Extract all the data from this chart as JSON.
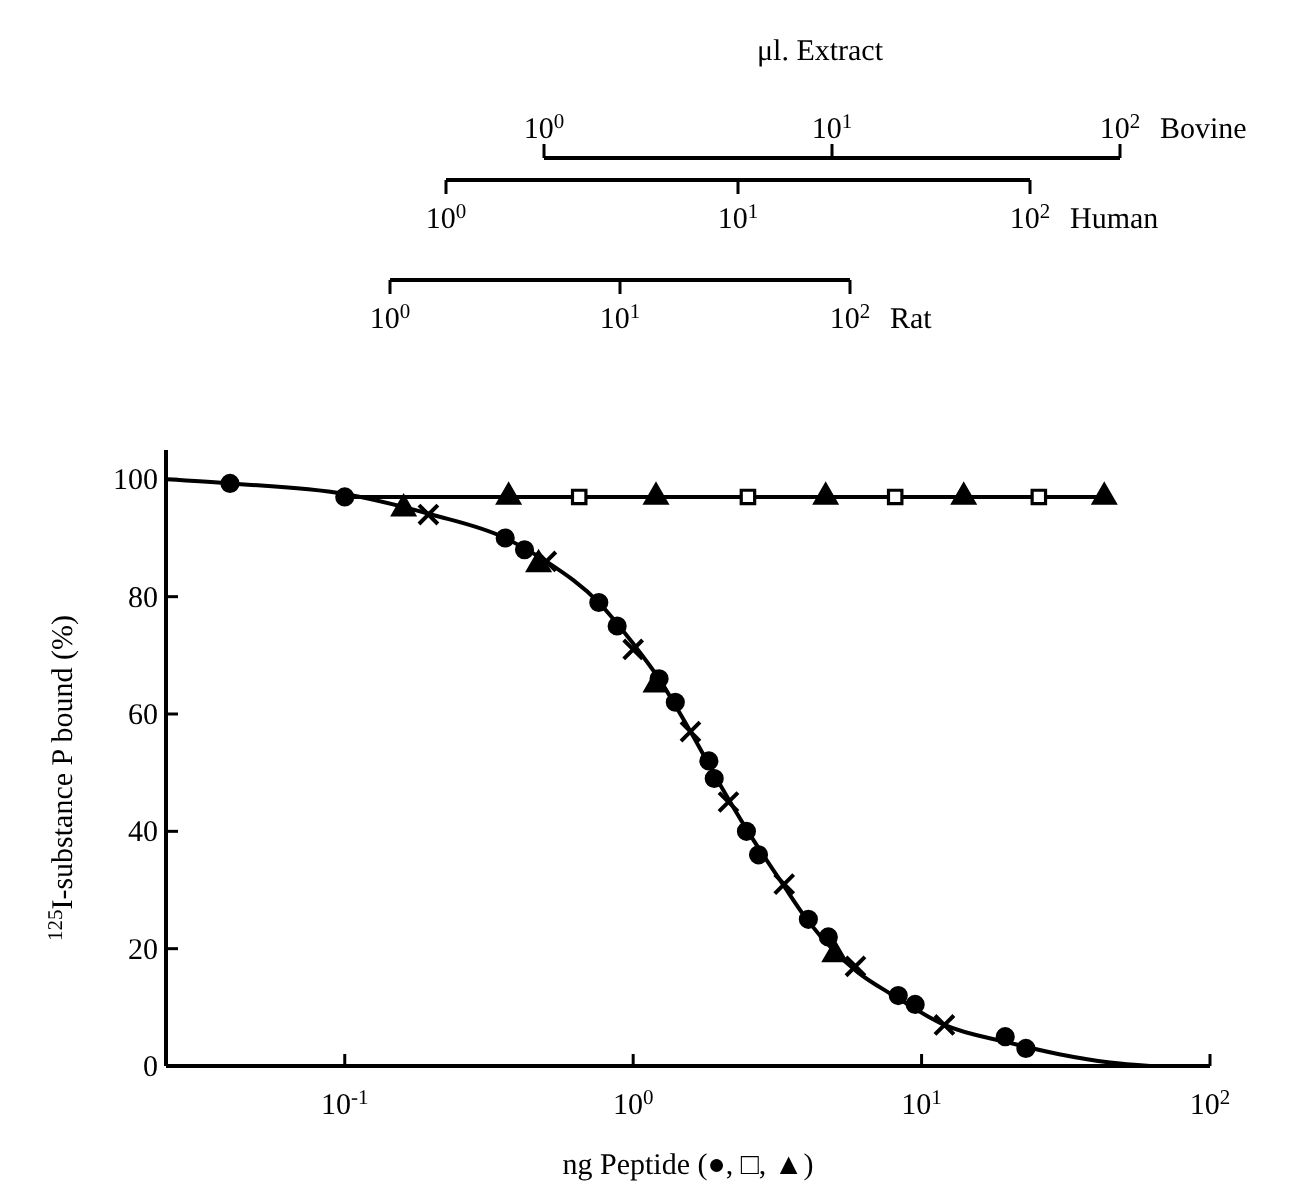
{
  "chart_data": [
    {
      "type": "scatter",
      "xlabel": "ng  Peptide (●, □, ▲)",
      "ylabel": "$^{125}$I-substance P bound (%)",
      "log": "x",
      "xlim": [
        0.024,
        100
      ],
      "xticks": [
        {
          "value": 0.1,
          "label": "10$^{-1}$"
        },
        {
          "value": 1,
          "label": "10$^{0}$"
        },
        {
          "value": 10,
          "label": "10$^{1}$"
        },
        {
          "value": 100,
          "label": "10$^{2}$"
        }
      ],
      "ylim": [
        0,
        105
      ],
      "yticks": [
        0,
        20,
        40,
        60,
        80,
        100
      ],
      "series": [
        {
          "type": "line",
          "color": "#000000",
          "marker": "none",
          "x": [
            0.024,
            0.04,
            0.1,
            0.2,
            0.36,
            0.5,
            0.76,
            1.0,
            1.23,
            1.58,
            2.0,
            2.5,
            3.3,
            4.0,
            5.0,
            6.0,
            8.0,
            12,
            20,
            30,
            45,
            62
          ],
          "values": [
            100,
            99.3,
            97.5,
            94,
            90,
            86,
            79,
            72,
            66,
            57,
            48,
            40,
            31,
            25,
            19.5,
            16,
            12,
            7,
            4,
            2,
            0.6,
            0
          ]
        },
        {
          "type": "line",
          "color": "#000000",
          "marker": "none",
          "x": [
            0.1,
            43
          ],
          "values": [
            97,
            97
          ]
        },
        {
          "color": "#000000",
          "marker": "circle",
          "x": [
            0.04,
            0.1,
            0.36,
            0.76,
            1.23,
            1.83,
            2.47,
            4.05,
            8.3,
            19.5
          ],
          "values": [
            99.3,
            97,
            90,
            79,
            66,
            52,
            40,
            25,
            12,
            5
          ]
        },
        {
          "color": "#000000",
          "marker": "circle",
          "x": [
            0.42,
            0.88,
            1.4,
            1.91,
            2.72,
            4.75,
            9.5,
            23
          ],
          "values": [
            88,
            75,
            62,
            49,
            36,
            22,
            10.5,
            3
          ]
        },
        {
          "color": "#000000",
          "marker": "cross",
          "x": [
            0.195,
            0.5,
            1.0,
            1.58,
            2.14,
            3.34,
            5.9,
            12
          ],
          "values": [
            94,
            86,
            71,
            57,
            45,
            31,
            17,
            7
          ]
        },
        {
          "color": "#000000",
          "marker": "triangle",
          "x": [
            0.47,
            1.2
          ],
          "values": [
            85.5,
            65
          ]
        },
        {
          "color": "#000000",
          "marker": "triangle",
          "x": [
            0.16,
            5.0,
            0.37,
            1.2,
            4.65,
            14,
            43
          ],
          "values": [
            95,
            19,
            97,
            97,
            97,
            97,
            97
          ]
        },
        {
          "color": "#000000",
          "marker": "square",
          "x": [
            0.65,
            2.5,
            8.1,
            25.5
          ],
          "values": [
            97,
            97,
            97,
            97
          ]
        }
      ]
    },
    {
      "type": "other",
      "title": "μl. Extract",
      "xlabel": "Bovine",
      "annotations": [
        "10$^{0}$",
        "10$^{1}$",
        "10$^{2}$"
      ]
    },
    {
      "type": "other",
      "xlabel": "Human",
      "annotations": [
        "10$^{0}$",
        "10$^{1}$",
        "10$^{2}$"
      ]
    },
    {
      "type": "other",
      "xlabel": "Rat",
      "annotations": [
        "10$^{0}$",
        "10$^{1}$",
        "10$^{2}$"
      ]
    }
  ]
}
